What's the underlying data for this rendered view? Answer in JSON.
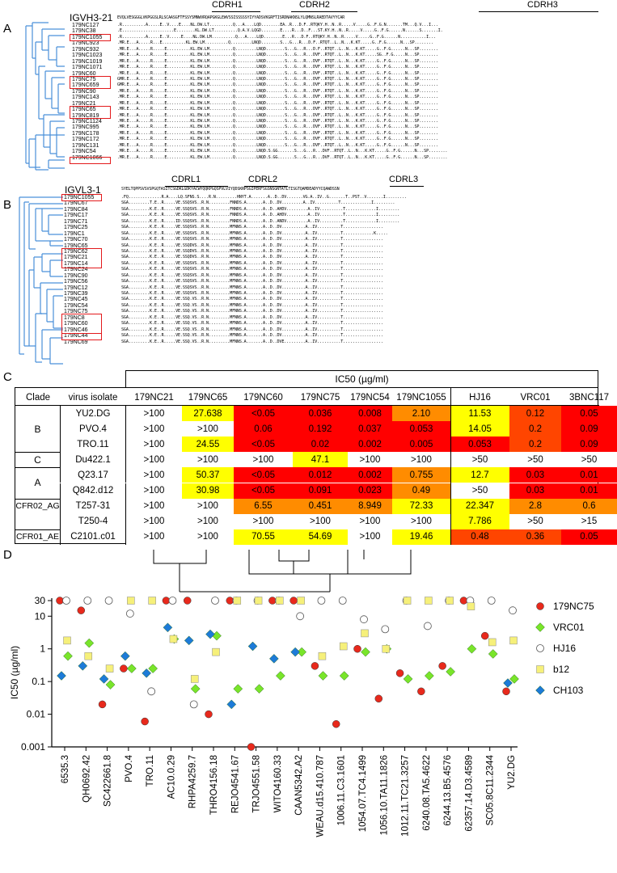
{
  "panels": {
    "a": "A",
    "b": "B",
    "c": "C",
    "d": "D"
  },
  "panel_a": {
    "gene": "IGVH3-21",
    "germline": "EVQLVESGGGLVKPGGSLRLSCAASGFTFSSYSMNWVRQAPGKGLEWVSSISSSSSYIYYADSVKGRFTISRDNAKNSLYLQMNSLRAEDTAVYYCAR",
    "cdrs": [
      "CDRH1",
      "CDRH2",
      "CDRH3"
    ],
    "rows": [
      {
        "name": "179NC127",
        "seq": ".R..........A.....E..V....E....NL.DW.LT..........Q...A....LQD........EA..R...D.F..RTQKY.H..N..R.....V.....G..F.G.N.......TM...Q.V...I..."
      },
      {
        "name": "179NC38",
        "seq": ".E......................E........KL.DW.LT..........Q.A.V.LQGD........E....R...D..F...ST.KY.H..N..R.....V.....G..F.G......N......S.......I."
      },
      {
        "name": "179NC1055",
        "seq": ".R..........A.....E..V.....E....NL.DW.LM..........Q...A....LQD........E...R...D.F..RTQKY.H..N..R.....V.....G..F.G......N...........I..."
      },
      {
        "name": "179NC923",
        "seq": ".MR.E...A.....R...E..........KL.EW.LM..........Q.........LNQD........S...G...R...D.F..RTQT..L..N...K.KT.....G..F.G......N...SP........"
      },
      {
        "name": "179NC932",
        "seq": ".MR.E...A.....R.....E..........KL.EW.LM..........Q.........LNQD........S...G...R...D.F..RTQT..L..N...K.KT.....G..F.G......N...SP........"
      },
      {
        "name": "179NC1023",
        "seq": ".MR.E...A.....R.....E..........KL.EW.LM..........Q.........LNQD........S...G...R...DVF..RTQT..L..N...K.KT.....SG..F.G.....N...SP........"
      },
      {
        "name": "179NC1019",
        "seq": ".MR.E...A.....R.....E..........KL.EW.LM..........Q.........LNQD........S...G...R...DVF..RTQT..L..N...K.KT.....G..F.G......N...SP........"
      },
      {
        "name": "179NC1071",
        "seq": ".MR.E...A.....R.....E..........KL.EW.LM..........Q.........LNQD........S...G...R...DVF..RTQT..L..N...K.KT.....G..F.G......N...SP........"
      },
      {
        "name": "179NC60",
        "seq": ".MR.E...A.....R.....E..........KL.EW.LM..........Q.........LNQD........S...G...R...DVF..RTQT..L..N...K.KT.....G..F.G......N...SP........"
      },
      {
        "name": "179NC75",
        "seq": "GMR.E...A.....R.....E..........KL.EW.LM..........Q.........LNQD........S...G...R...DVF..RTQT..L..N...K.KT.....G..F.G......N...SP........"
      },
      {
        "name": "179NC659",
        "seq": "GMR.E...A.....R.....E..........KL.EW.LM..........Q.........LNQD........S...G...R...DVF..RTQT..L..N...K.KT.....G..F.G......N...SP........"
      },
      {
        "name": "179NC90",
        "seq": ".MR.E...A.....R.....E..........KL.EW.LM..........Q.........LNQD........S...G...R...DVF..RTQT..L..N...K.KT.....G..F.G......N...SP........"
      },
      {
        "name": "179NC143",
        "seq": ".MR.E...A.....R.....E..........KL.EW.LM..........Q.........LNQD........S...G...R...DVF..RTQT..L..N...K.KT.....G..F.G......N...SP........"
      },
      {
        "name": "179NC21",
        "seq": ".MR.E...A.....R.....E..........KL.EW.LM..........Q.........LNQD........S...G...R...DVF..RTQT..L..N...K.KT.....G..F.G......N...SP........"
      },
      {
        "name": "179NC65",
        "seq": ".MR.E...A.....R.....E..........KL.EW.LM..........Q.........LNQD........S...G...R...DVF..RTQT..L..N...K.KT.....G..F.G......N...SP........"
      },
      {
        "name": "179NC819",
        "seq": ".MR.E...A.....R.....E..........KL.EW.LM..........Q.........LNQD........S...G...R...DVF..RTQT..L..N...K.KT.....G..F.G......N...SP........"
      },
      {
        "name": "179NC1124",
        "seq": ".MR.E...A.....R.....E..........KL.EW.LM..........Q.........LNQD........S...G...R...DVF..RTQT..L..N...K.KT.....G..F.G......N...SP........"
      },
      {
        "name": "179NC995",
        "seq": ".MR.E...A.....R.....E..........KL.EW.LM..........Q.........LNQD........S...G...R...DVF..RTQT..L..N...K.KT.....G..F.G......N...SP........"
      },
      {
        "name": "179NC178",
        "seq": ".MR.E...A.....R.....E..........KL.EW.LM..........Q.........LNQD........S...G...R...DVF..RTQT..L..N...K.KT.....G..F.G......N...SP........"
      },
      {
        "name": "179NC172",
        "seq": ".MR.E...A.....R.....E..........KL.EW.LM..........Q.........LNQD........S...G...R...DVF..RTQT..L..N...K.KT.....G..F.G......N...SP........"
      },
      {
        "name": "179NC131",
        "seq": ".MR.E...A.....R.....E..........KL.EW.LM..........Q.........LNQD........S...G...R...DVF..RTQT..L..N...K.KT.....G..F.G......N...SP........"
      },
      {
        "name": "179NC54",
        "seq": ".MR.E...A.....R.....E..........KL.EW.LM..........Q.........LNQD.S.GG.......S...G...R...DVF..RTQT..L..N...K.KT.....G..F.G......N...SP........"
      },
      {
        "name": "179NC1066",
        "seq": ".MR.E...A.....R.....E..........KL.EW.LM..........Q.........LNQD.S.GG.......S...G...R...DVF..RTQT..L..N...K.KT.....G..F.G......N...SP........"
      }
    ]
  },
  "panel_b": {
    "gene": "IGVL3-1",
    "germline": "SYELTQPPSVSVSPGQTASITCSGDKLGDKYACWYQQKPGQSPVLVIYQDSKRPSGIPERFSGSNSGNTATLTISGTQAMDEADYYCQAWDSSN",
    "cdrs": [
      "CDRL1",
      "CDRL2",
      "CDRL3"
    ],
    "rows": [
      {
        "name": "179NC1055",
        "seq": ".FQ..............R.A....LQ.SFNS.S....R.N.........HNYT.A.......A..D..DV.......VG.A..IV..G.......T..PST..V.......I........."
      },
      {
        "name": "179NC67",
        "seq": "SGA.........T.E..R.....VE.SSQSVS..R.N.........FNNDS.A.......A..D..DV.........A..IV..........T.............I........."
      },
      {
        "name": "179NC84",
        "seq": "SGA.........K.E..R.....VE.SSQSVS..R.N.........FNNDS.A.......A..D..AHDV.........A..IV..........T.............I........."
      },
      {
        "name": "179NC17",
        "seq": "SGA.........K.E..R.....VE.SSQSVS..R.N.........FNNDS.A.......A..D..AHDV.........A..IV..........T.............I........."
      },
      {
        "name": "179NC71",
        "seq": "SGA.........K.E..R.....ID.SSQSVS..R.N.........FNNDS.A.......A..D..ANDV.........A..IV..........T.............I........."
      },
      {
        "name": "179NC25",
        "seq": "SGA.........K.E..R.....VE.SSQSVS..R.N.........MFNNS.A.......A..D..DV..........A..IV..........T................."
      },
      {
        "name": "179NC1",
        "seq": "SGA.........K.E..R.....VE.SSQSVS..R.N.........MFNNS.A.......A..D..DV..........A..IV..........T.............K....."
      },
      {
        "name": "179NC70",
        "seq": "SGA.........K.E..R.....VE.SSQSVS..R.N.........MFNNS.A.......A..D..DV..........A..IV..........T................."
      },
      {
        "name": "179NC65",
        "seq": "SGA.........K.E..R.....VE.SSQDVS..R.N.........MFNNS.A.......A..D..DV..........A..IV..........T................."
      },
      {
        "name": "179NC62",
        "seq": "SGA.........K.E..R.....VE.SSQDVS..R.N.........MFNNS.A.......A..D..DV..........A..IV..........T................."
      },
      {
        "name": "179NC21",
        "seq": "SGA.........K.E..R.....VE.SSQDVS..R.N.........MFNNS.A.......A..D..DV..........A..IV..........T................."
      },
      {
        "name": "179NC14",
        "seq": "SGA.........K.E..R.....VE.SSQSVS..R.N.........MFNNS.A.......A..D..DV..........A..IV..........T................."
      },
      {
        "name": "179NC24",
        "seq": "SGA.........K.E..R.....VE.SSQSVS..R.N.........MFNNS.A.......A..D..DV..........A..IV..........T................."
      },
      {
        "name": "179NC90",
        "seq": "SGA.........K.E..R.....VE.SSQSVS..R.N.........MFNNS.A.......A..D..DV..........A..IV..........T................."
      },
      {
        "name": "179NC56",
        "seq": "SGA.........K.E..R.....VE.SSQSVS..R.N.........MFNNS.A.......A..D..DV..........A..IV..........T................."
      },
      {
        "name": "179NC12",
        "seq": "SGA.........K.E..R.....VE.SSQSVS..R.N.........MFNNS.A.......A..D..DV..........A..IV..........T................."
      },
      {
        "name": "179NC39",
        "seq": "SGA.........K.E..R.....VE.SSQSVS..R.N.........MFNNS.A.......A..D..DV..........A..IV..........T................."
      },
      {
        "name": "179NC45",
        "seq": "SGA.........K.E..R.....VE.SSQ.VS..R.N.........MFNNS.A.......A..D..DV..........A..IV..........T................."
      },
      {
        "name": "179NC54",
        "seq": "SGA.........K.E..R.....VE.SSQ.VS..R.N.........MFNNS.A.......A..D..DV..........A..IV..........T................."
      },
      {
        "name": "179NC75",
        "seq": "SGA.........K.E..R.....VE.SSQ.VS..R.N.........MFNNS.A.......A..D..DV..........A..IV..........T................."
      },
      {
        "name": "179NC8",
        "seq": "SGA.........K.E..R.....VE.SSQ.VS..R.N.........MFNNS.A.......A..D..DV..........A..IV..........T................."
      },
      {
        "name": "179NC60",
        "seq": "SGA.........K.E..R.....VE.SSQ.VS..R.N.........MFNNS.A.......A..D..DV..........A..IV..........T................."
      },
      {
        "name": "179NC46",
        "seq": "SGA.........K.E..R.....VE.SSQ.VS..R.N.........MFNNS.A.......A..D..DV..........A..IV..........T................."
      },
      {
        "name": "179NC44",
        "seq": "SGA.........K.E..R.....VE.SSQ.VS..R.N.........MFNNS.A.......A..D..DV..........A..IV..........T................."
      },
      {
        "name": "179NC69",
        "seq": "SGA.........K.E..R.....VE.SSQ.VS..R.N.........MFNNS.A.......A..D..DVE.........A..IV..........T................."
      }
    ]
  },
  "panel_c": {
    "ic50_header": "IC50 (µg/ml)",
    "clade_header": "Clade",
    "virus_header": "virus isolate",
    "antibodies": [
      "179NC21",
      "179NC65",
      "179NC60",
      "179NC75",
      "179NC54",
      "179NC1055",
      "HJ16",
      "VRC01",
      "3BNC117"
    ],
    "clades": [
      "B",
      "C",
      "A",
      "CFR02_AG",
      "CFR01_AE"
    ],
    "rows": [
      {
        "virus": "YU2.DG",
        "values": [
          ">100",
          "27.638",
          "<0.05",
          "0.036",
          "0.008",
          "2.10",
          "11.53",
          "0.12",
          "0.05"
        ],
        "colors": [
          "#ffffff",
          "#ffff00",
          "#ff0000",
          "#ff0000",
          "#ff0000",
          "#ff8c00",
          "#ffff00",
          "#ff4500",
          "#ff0000"
        ]
      },
      {
        "virus": "PVO.4",
        "values": [
          ">100",
          ">100",
          "0.06",
          "0.192",
          "0.037",
          "0.053",
          "14.05",
          "0.2",
          "0.09"
        ],
        "colors": [
          "#ffffff",
          "#ffffff",
          "#ff0000",
          "#ff0000",
          "#ff0000",
          "#ff0000",
          "#ffff00",
          "#ff4500",
          "#ff0000"
        ]
      },
      {
        "virus": "TRO.11",
        "values": [
          ">100",
          "24.55",
          "<0.05",
          "0.02",
          "0.002",
          "0.005",
          "0.053",
          "0.2",
          "0.09"
        ],
        "colors": [
          "#ffffff",
          "#ffff00",
          "#ff0000",
          "#ff0000",
          "#ff0000",
          "#ff0000",
          "#ff0000",
          "#ff4500",
          "#ff0000"
        ]
      },
      {
        "virus": "Du422.1",
        "values": [
          ">100",
          ">100",
          ">100",
          "47.1",
          ">100",
          ">100",
          ">50",
          ">50",
          ">50"
        ],
        "colors": [
          "#ffffff",
          "#ffffff",
          "#ffffff",
          "#ffff00",
          "#ffffff",
          "#ffffff",
          "#ffffff",
          "#ffffff",
          "#ffffff"
        ]
      },
      {
        "virus": "Q23.17",
        "values": [
          ">100",
          "50.37",
          "<0.05",
          "0.012",
          "0.002",
          "0.755",
          "12.7",
          "0.03",
          "0.01"
        ],
        "colors": [
          "#ffffff",
          "#ffff00",
          "#ff0000",
          "#ff0000",
          "#ff0000",
          "#ff8c00",
          "#ffff00",
          "#ff0000",
          "#ff0000"
        ]
      },
      {
        "virus": "Q842.d12",
        "values": [
          ">100",
          "30.98",
          "<0.05",
          "0.091",
          "0.023",
          "0.49",
          ">50",
          "0.03",
          "0.01"
        ],
        "colors": [
          "#ffffff",
          "#ffff00",
          "#ff0000",
          "#ff0000",
          "#ff0000",
          "#ff8c00",
          "#ffffff",
          "#ff0000",
          "#ff0000"
        ]
      },
      {
        "virus": "T257-31",
        "values": [
          ">100",
          ">100",
          "6.55",
          "0.451",
          "8.949",
          "72.33",
          "22.347",
          "2.8",
          "0.6"
        ],
        "colors": [
          "#ffffff",
          "#ffffff",
          "#ff8c00",
          "#ff8c00",
          "#ff8c00",
          "#ffff00",
          "#ffff00",
          "#ff8c00",
          "#ff8c00"
        ]
      },
      {
        "virus": "T250-4",
        "values": [
          ">100",
          ">100",
          ">100",
          ">100",
          ">100",
          ">100",
          "7.786",
          ">50",
          ">15"
        ],
        "colors": [
          "#ffffff",
          "#ffffff",
          "#ffffff",
          "#ffffff",
          "#ffffff",
          "#ffffff",
          "#ffff00",
          "#ffffff",
          "#ffffff"
        ]
      },
      {
        "virus": "C2101.c01",
        "values": [
          ">100",
          ">100",
          "70.55",
          "54.69",
          ">100",
          "19.46",
          "0.48",
          "0.36",
          "0.05"
        ],
        "colors": [
          "#ffffff",
          "#ffffff",
          "#ffff00",
          "#ffff00",
          "#ffffff",
          "#ffff00",
          "#ff4500",
          "#ff4500",
          "#ff0000"
        ]
      }
    ]
  },
  "chart_data": {
    "type": "scatter",
    "ylabel": "IC50 (µg/ml)",
    "yscale": "log",
    "ylim": [
      0.001,
      30
    ],
    "yticks": [
      "30",
      "10",
      "1",
      "0.1",
      "0.01",
      "0.001"
    ],
    "legend_position": "right",
    "categories": [
      "6535.3",
      "QH0692.42",
      "SC422661.8",
      "PVO.4",
      "TRO.11",
      "AC10.0.29",
      "RHPA4259.7",
      "THRO4156.18",
      "REJO4541.67",
      "TRJO4551.58",
      "WITO4160.33",
      "CAAN5342.A2",
      "WEAU.d15.410.787",
      "1006.11.C3.1601",
      "1054.07.TC4.1499",
      "1056.10.TA11.1826",
      "1012.11.TC21.3257",
      "6240.08.TA5.4622",
      "6244.13.B5.4576",
      "62357.14.D3.4589",
      "SC05.8C11.2344",
      "YU2.DG"
    ],
    "series": [
      {
        "name": "179NC75",
        "color": "#e8291c",
        "marker": "circle",
        "values": [
          30,
          15,
          0.02,
          0.25,
          0.006,
          30,
          30,
          0.01,
          30,
          0.001,
          30,
          30,
          0.3,
          0.005,
          1.0,
          0.03,
          0.18,
          0.05,
          0.3,
          30,
          2.5,
          0.05
        ]
      },
      {
        "name": "VRC01",
        "color": "#79e52a",
        "marker": "diamond",
        "values": [
          0.6,
          1.5,
          0.08,
          0.25,
          0.25,
          2.0,
          0.06,
          2.5,
          0.06,
          0.06,
          0.15,
          0.8,
          0.15,
          0.15,
          0.8,
          1.0,
          0.12,
          0.15,
          0.2,
          1.0,
          0.7,
          0.12
        ]
      },
      {
        "name": "HJ16",
        "color": "#ffffff",
        "marker": "circle-open",
        "values": [
          30,
          30,
          30,
          12,
          0.05,
          30,
          0.02,
          30,
          30,
          30,
          30,
          10,
          30,
          30,
          8,
          4,
          30,
          5,
          30,
          30,
          30,
          15
        ]
      },
      {
        "name": "b12",
        "color": "#f6f07a",
        "marker": "square",
        "values": [
          1.8,
          0.6,
          0.25,
          30,
          30,
          2.0,
          0.12,
          0.8,
          30,
          30,
          30,
          30,
          0.6,
          1.2,
          3.0,
          1.0,
          30,
          30,
          30,
          20,
          1.6,
          1.8
        ]
      },
      {
        "name": "CH103",
        "color": "#1d7bd8",
        "marker": "diamond",
        "values": [
          0.15,
          0.3,
          0.12,
          0.6,
          0.18,
          4.5,
          1.8,
          2.8,
          0.02,
          1.2,
          0.5,
          0.8,
          null,
          null,
          null,
          null,
          null,
          null,
          null,
          null,
          null,
          0.09
        ]
      }
    ]
  }
}
